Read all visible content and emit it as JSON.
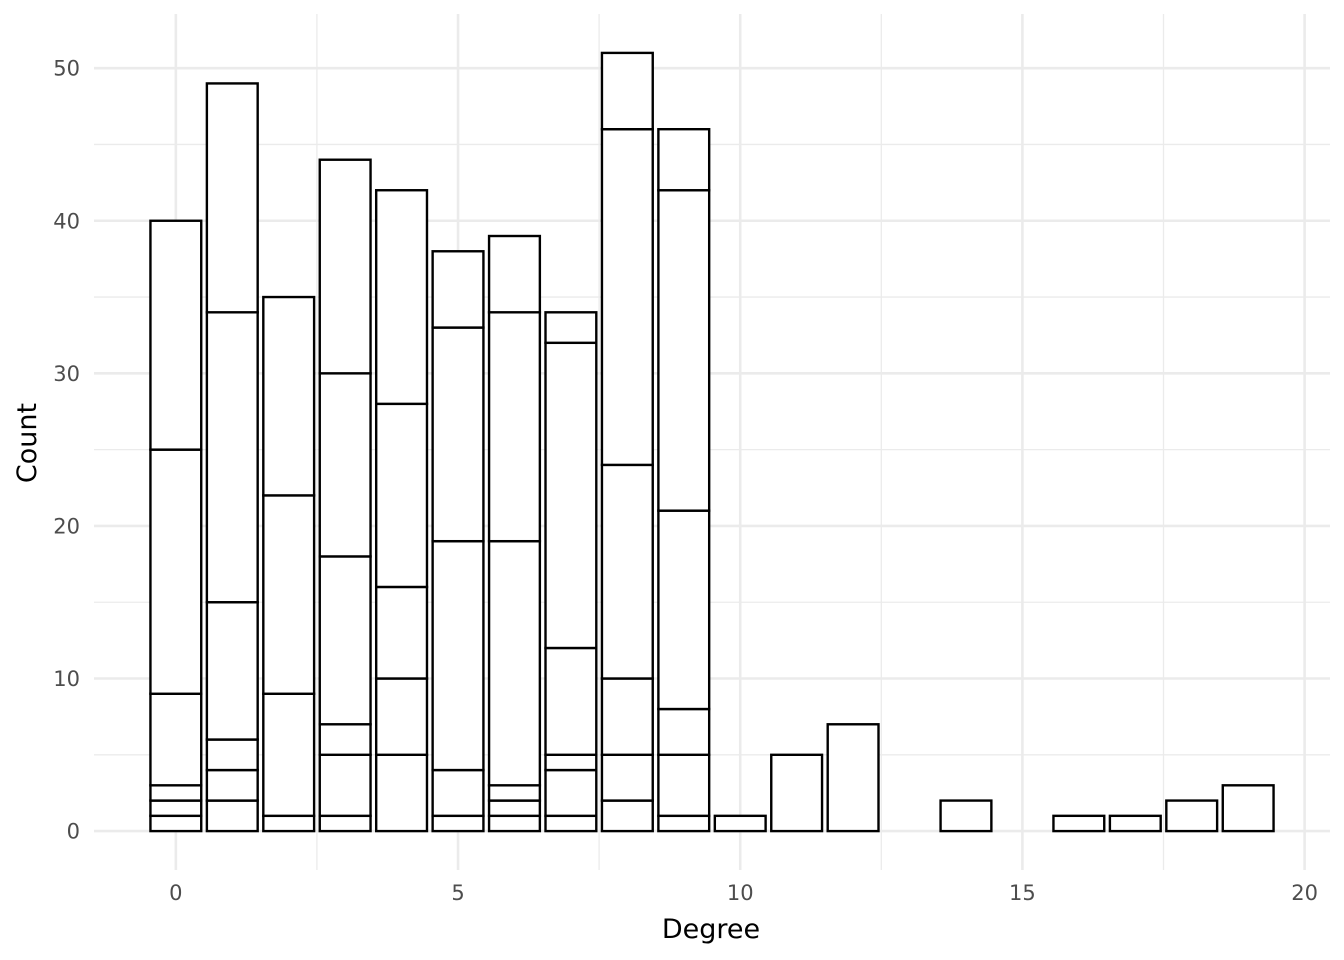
{
  "chart_data": {
    "type": "bar",
    "title": "",
    "xlabel": "Degree",
    "ylabel": "Count",
    "xlim": [
      -1.45,
      20.45
    ],
    "ylim": [
      -2.55,
      53.55
    ],
    "x_ticks": [
      0,
      5,
      10,
      15,
      20
    ],
    "y_ticks": [
      0,
      10,
      20,
      30,
      40,
      50
    ],
    "grid": true,
    "legend": "none",
    "bar_fill": "#ffffff",
    "bar_outline": "#000000",
    "grid_color": "#ebebeb",
    "bars": [
      {
        "x": 0,
        "segments": [
          0,
          1,
          2,
          3,
          9,
          25,
          40
        ]
      },
      {
        "x": 1,
        "segments": [
          0,
          2,
          4,
          6,
          15,
          34,
          49
        ]
      },
      {
        "x": 2,
        "segments": [
          0,
          1,
          9,
          22,
          35
        ]
      },
      {
        "x": 3,
        "segments": [
          0,
          1,
          5,
          7,
          18,
          30,
          44
        ]
      },
      {
        "x": 4,
        "segments": [
          0,
          5,
          10,
          16,
          28,
          42
        ]
      },
      {
        "x": 5,
        "segments": [
          0,
          1,
          4,
          19,
          33,
          38
        ]
      },
      {
        "x": 6,
        "segments": [
          0,
          1,
          2,
          3,
          19,
          34,
          39
        ]
      },
      {
        "x": 7,
        "segments": [
          0,
          1,
          4,
          5,
          12,
          32,
          34
        ]
      },
      {
        "x": 8,
        "segments": [
          0,
          2,
          5,
          10,
          24,
          46,
          51
        ]
      },
      {
        "x": 9,
        "segments": [
          0,
          1,
          5,
          8,
          21,
          42,
          46
        ]
      },
      {
        "x": 10,
        "segments": [
          0,
          1
        ]
      },
      {
        "x": 11,
        "segments": [
          0,
          5
        ]
      },
      {
        "x": 12,
        "segments": [
          0,
          7
        ]
      },
      {
        "x": 14,
        "segments": [
          0,
          2
        ]
      },
      {
        "x": 16,
        "segments": [
          0,
          1
        ]
      },
      {
        "x": 17,
        "segments": [
          0,
          1
        ]
      },
      {
        "x": 18,
        "segments": [
          0,
          2
        ]
      },
      {
        "x": 19,
        "segments": [
          0,
          3
        ]
      }
    ]
  }
}
